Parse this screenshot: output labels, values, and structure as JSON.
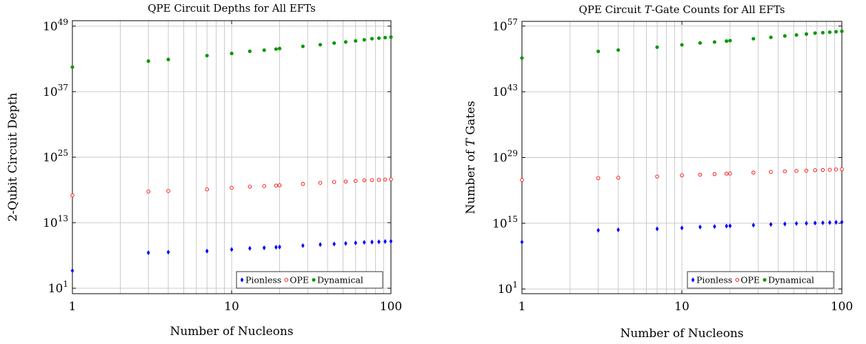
{
  "chart_data": [
    {
      "type": "scatter",
      "title": "QPE Circuit Depths for All EFTs",
      "xlabel": "Number of Nucleons",
      "ylabel": "2-Qubit Circuit Depth",
      "xscale": "log",
      "yscale": "log",
      "xlim": [
        1,
        100
      ],
      "ylim_exponent": [
        0,
        50
      ],
      "x_ticks": [
        "1",
        "10",
        "100"
      ],
      "y_ticks": [
        {
          "base": "10",
          "exp": "1"
        },
        {
          "base": "10",
          "exp": "13"
        },
        {
          "base": "10",
          "exp": "25"
        },
        {
          "base": "10",
          "exp": "37"
        },
        {
          "base": "10",
          "exp": "49"
        }
      ],
      "grid": true,
      "legend_position": "bottom-right",
      "x": [
        1,
        3,
        4,
        7,
        10,
        13,
        16,
        19,
        20,
        28,
        36,
        44,
        52,
        60,
        68,
        76,
        84,
        92,
        100
      ],
      "series": [
        {
          "name": "Pionless",
          "color": "#0000ff",
          "marker": "diamond",
          "log10_values": [
            4.2,
            7.5,
            7.6,
            7.8,
            8.1,
            8.3,
            8.4,
            8.5,
            8.55,
            8.8,
            9.0,
            9.1,
            9.2,
            9.3,
            9.4,
            9.45,
            9.5,
            9.55,
            9.6
          ]
        },
        {
          "name": "OPE",
          "color": "#ff0000",
          "marker": "open-circle",
          "log10_values": [
            18.0,
            18.7,
            18.8,
            19.1,
            19.4,
            19.6,
            19.7,
            19.8,
            19.85,
            20.1,
            20.3,
            20.45,
            20.55,
            20.65,
            20.75,
            20.8,
            20.85,
            20.9,
            20.95
          ]
        },
        {
          "name": "Dynamical",
          "color": "#009900",
          "marker": "filled-circle",
          "log10_values": [
            41.5,
            42.6,
            42.9,
            43.6,
            44.0,
            44.4,
            44.6,
            44.8,
            44.9,
            45.3,
            45.6,
            45.9,
            46.1,
            46.3,
            46.5,
            46.7,
            46.8,
            46.9,
            47.0
          ]
        }
      ]
    },
    {
      "type": "scatter",
      "title": "QPE Circuit T-Gate Counts for All EFTs",
      "title_parts": [
        "QPE Circuit ",
        "T",
        "-Gate Counts for All EFTs"
      ],
      "xlabel": "Number of Nucleons",
      "ylabel": "Number of T Gates",
      "ylabel_parts": [
        "Number of ",
        "T",
        " Gates"
      ],
      "xscale": "log",
      "yscale": "log",
      "xlim": [
        1,
        100
      ],
      "ylim_exponent": [
        0,
        58
      ],
      "x_ticks": [
        "1",
        "10",
        "100"
      ],
      "y_ticks": [
        {
          "base": "10",
          "exp": "1"
        },
        {
          "base": "10",
          "exp": "15"
        },
        {
          "base": "10",
          "exp": "29"
        },
        {
          "base": "10",
          "exp": "43"
        },
        {
          "base": "10",
          "exp": "57"
        }
      ],
      "grid": true,
      "legend_position": "bottom-right",
      "x": [
        1,
        3,
        4,
        7,
        10,
        13,
        16,
        19,
        20,
        28,
        36,
        44,
        52,
        60,
        68,
        76,
        84,
        92,
        100
      ],
      "series": [
        {
          "name": "Pionless",
          "color": "#0000ff",
          "marker": "diamond",
          "log10_values": [
            11.0,
            13.5,
            13.6,
            13.8,
            14.0,
            14.2,
            14.3,
            14.4,
            14.45,
            14.6,
            14.75,
            14.85,
            14.95,
            15.0,
            15.05,
            15.1,
            15.15,
            15.2,
            15.25
          ]
        },
        {
          "name": "OPE",
          "color": "#ff0000",
          "marker": "open-circle",
          "log10_values": [
            24.2,
            24.6,
            24.7,
            24.95,
            25.2,
            25.35,
            25.45,
            25.55,
            25.6,
            25.8,
            25.95,
            26.05,
            26.15,
            26.2,
            26.3,
            26.35,
            26.4,
            26.45,
            26.5
          ]
        },
        {
          "name": "Dynamical",
          "color": "#009900",
          "marker": "filled-circle",
          "log10_values": [
            50.2,
            51.6,
            51.9,
            52.5,
            53.0,
            53.4,
            53.6,
            53.8,
            53.9,
            54.3,
            54.6,
            54.9,
            55.1,
            55.3,
            55.5,
            55.6,
            55.7,
            55.8,
            55.9
          ]
        }
      ]
    }
  ]
}
